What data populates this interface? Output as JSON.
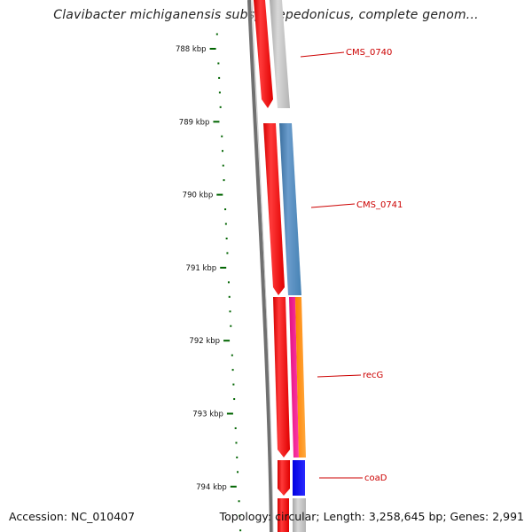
{
  "title": "Clavibacter michiganensis subsp. sepedonicus, complete genom...",
  "footer": {
    "accession": "Accession: NC_010407",
    "summary": "Topology: circular; Length: 3,258,645 bp; Genes: 2,991"
  },
  "scale": {
    "major_ticks": [
      "788 kbp",
      "789 kbp",
      "790 kbp",
      "791 kbp",
      "792 kbp",
      "793 kbp",
      "794 kbp"
    ]
  },
  "genes": [
    {
      "name": "CMS_0740",
      "color": "#c0c0c0"
    },
    {
      "name": "CMS_0741",
      "color": "#4682b4"
    },
    {
      "name": "recG",
      "color": "#ff1493",
      "second_color": "#ff8c00"
    },
    {
      "name": "coaD",
      "color": "#0000ff"
    }
  ],
  "colors": {
    "forward_track": "#ff0000",
    "backbone": "#808080",
    "tick": "#006400",
    "gene_label": "#cc0000"
  }
}
